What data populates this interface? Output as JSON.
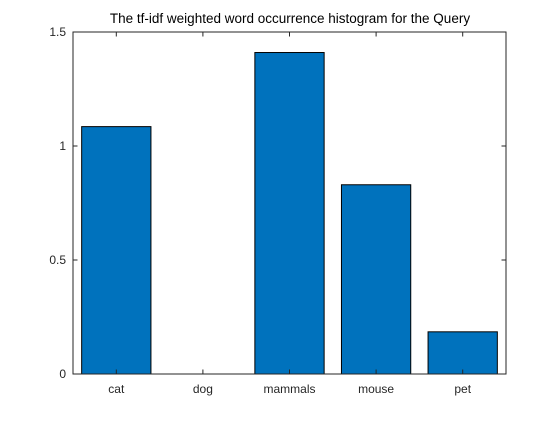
{
  "chart_data": {
    "type": "bar",
    "title": "The tf-idf weighted word occurrence histogram for the Query",
    "xlabel": "",
    "ylabel": "",
    "categories": [
      "cat",
      "dog",
      "mammals",
      "mouse",
      "pet"
    ],
    "values": [
      1.085,
      0.0,
      1.41,
      0.83,
      0.185
    ],
    "ylim": [
      0,
      1.5
    ],
    "yticks": [
      0,
      0.5,
      1,
      1.5
    ],
    "ytick_labels": [
      "0",
      "0.5",
      "1",
      "1.5"
    ],
    "bar_color": "#0072BD",
    "bar_edge_color": "#000000",
    "grid": false,
    "legend": "none"
  }
}
